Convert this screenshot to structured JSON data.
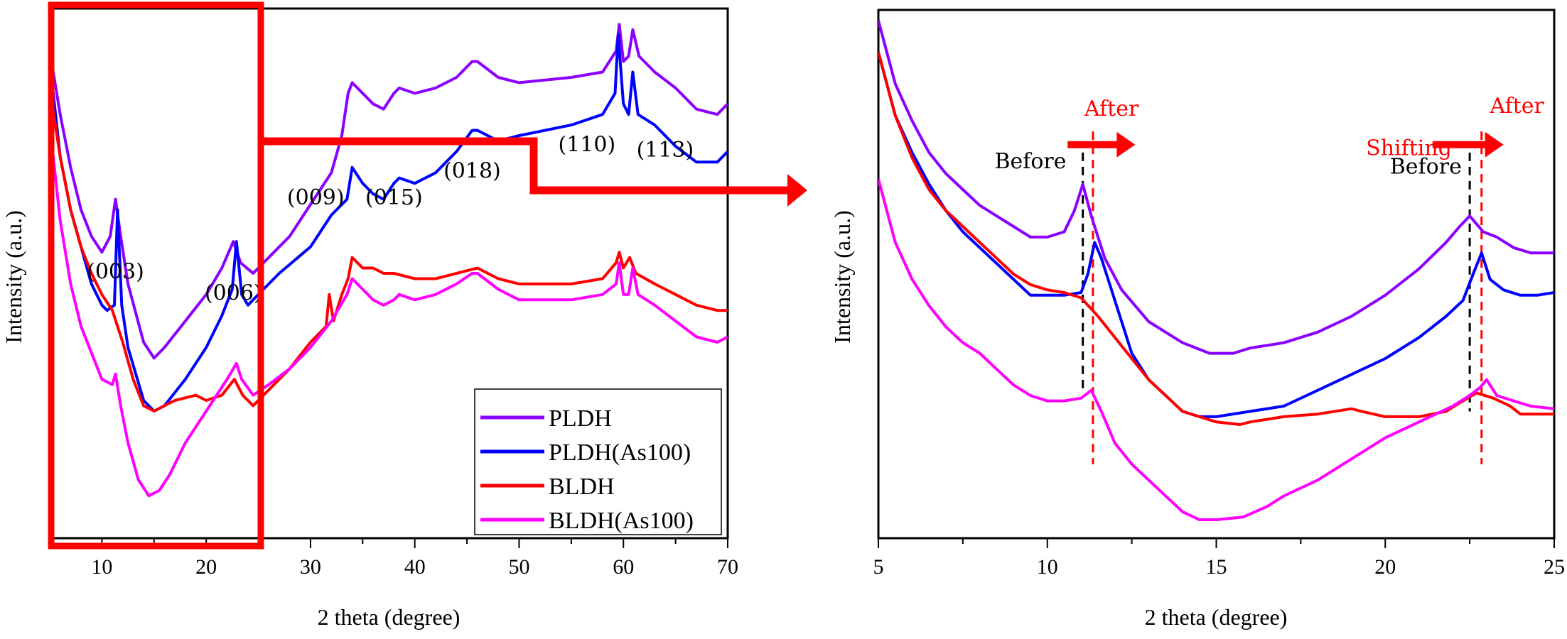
{
  "chart_data": [
    {
      "type": "line",
      "id": "left",
      "title": "",
      "xlabel": "2 theta (degree)",
      "ylabel": "Intensity (a.u.)",
      "xlim": [
        5,
        70
      ],
      "ylim": [
        0,
        100
      ],
      "xticks": [
        10,
        20,
        30,
        40,
        50,
        60,
        70
      ],
      "grid": false,
      "legend": {
        "placement": "bottom-right",
        "entries": [
          {
            "name": "PLDH",
            "color": "#8B00FF"
          },
          {
            "name": "PLDH(As100)",
            "color": "#0000FF"
          },
          {
            "name": "BLDH",
            "color": "#FF0000"
          },
          {
            "name": "BLDH(As100)",
            "color": "#FF00FF"
          }
        ]
      },
      "peak_labels": [
        {
          "text": "(003)",
          "x": 11.3,
          "y": 49
        },
        {
          "text": "(006)",
          "x": 22.6,
          "y": 45
        },
        {
          "text": "(009)",
          "x": 30.5,
          "y": 63
        },
        {
          "text": "(015)",
          "x": 38,
          "y": 63
        },
        {
          "text": "(018)",
          "x": 45.5,
          "y": 68
        },
        {
          "text": "(110)",
          "x": 56.5,
          "y": 73
        },
        {
          "text": "(113)",
          "x": 64,
          "y": 72
        }
      ],
      "series": [
        {
          "name": "PLDH",
          "color": "#8B00FF",
          "x": [
            5,
            6,
            7,
            8,
            9,
            10,
            10.8,
            11.3,
            11.8,
            12.5,
            14,
            15,
            16,
            18,
            20,
            21.5,
            22.6,
            23.3,
            24.5,
            26,
            28,
            30,
            32,
            33,
            33.6,
            34,
            35,
            36,
            37,
            38,
            38.5,
            40,
            42,
            44,
            45.5,
            46,
            48,
            50,
            55,
            58,
            59.3,
            59.6,
            60,
            60.5,
            60.9,
            61.5,
            63,
            65,
            67,
            69,
            70
          ],
          "y": [
            92,
            80,
            70,
            62,
            57,
            54,
            57,
            64,
            57,
            48,
            37,
            34,
            36,
            41,
            46,
            51,
            56,
            52,
            50,
            53,
            57,
            63,
            69,
            76,
            84,
            86,
            84,
            82,
            81,
            84,
            85,
            84,
            85,
            87,
            90,
            90,
            87,
            86,
            87,
            88,
            92,
            97,
            90,
            91,
            96,
            91,
            88,
            85,
            81,
            80,
            82
          ]
        },
        {
          "name": "PLDH(As100)",
          "color": "#0000FF",
          "x": [
            5,
            6,
            7,
            8,
            9,
            10,
            10.5,
            11.2,
            11.5,
            11.9,
            12.5,
            14,
            15,
            16,
            18,
            20,
            21.5,
            22.5,
            22.9,
            23.4,
            24,
            25,
            27,
            30,
            32,
            33.5,
            34,
            35,
            36,
            37,
            38,
            38.5,
            40,
            42,
            44,
            45.5,
            46,
            48,
            50,
            55,
            58,
            59.2,
            59.5,
            60,
            60.5,
            60.9,
            61.4,
            63,
            65,
            67,
            69,
            70
          ],
          "y": [
            90,
            72,
            62,
            55,
            48,
            44,
            43,
            44,
            62,
            44,
            36,
            26,
            24,
            25,
            30,
            36,
            42,
            47,
            56,
            46,
            44,
            46,
            50,
            55,
            61,
            64,
            70,
            67,
            65,
            64,
            67,
            68,
            67,
            69,
            73,
            77,
            77,
            75,
            76,
            78,
            80,
            84,
            95,
            82,
            80,
            88,
            80,
            78,
            74,
            71,
            71,
            73
          ]
        },
        {
          "name": "BLDH",
          "color": "#FF0000",
          "x": [
            5,
            6,
            7,
            8,
            9,
            10,
            11,
            12,
            13,
            14,
            15,
            16,
            17,
            19,
            20,
            21.5,
            22.7,
            23.5,
            24.5,
            26,
            28,
            30,
            31.5,
            31.8,
            32.2,
            33,
            33.6,
            34,
            35,
            36,
            37,
            38,
            40,
            42,
            44,
            46,
            48,
            50,
            55,
            58,
            59.3,
            59.6,
            60,
            60.6,
            61.2,
            63,
            65,
            67,
            69,
            70
          ],
          "y": [
            85,
            72,
            62,
            55,
            50,
            46,
            43,
            37,
            30,
            25,
            24,
            25,
            26,
            27,
            26,
            27,
            30,
            27,
            25,
            28,
            32,
            37,
            40,
            46,
            41,
            46,
            49,
            53,
            51,
            51,
            50,
            50,
            49,
            49,
            50,
            51,
            49,
            48,
            48,
            49,
            52,
            54,
            51,
            53,
            50,
            48,
            46,
            44,
            43,
            43
          ]
        },
        {
          "name": "BLDH(As100)",
          "color": "#FF00FF",
          "x": [
            5,
            6,
            7,
            8,
            9,
            10,
            11,
            11.3,
            11.8,
            12.5,
            13.5,
            14.5,
            15.5,
            16.5,
            18,
            20,
            22,
            22.9,
            23.4,
            24.5,
            26,
            28,
            30,
            32,
            33.5,
            34,
            35,
            36,
            37,
            38,
            38.5,
            40,
            42,
            44,
            45.5,
            46,
            48,
            50,
            55,
            58,
            59.3,
            59.6,
            60,
            60.5,
            60.9,
            61.4,
            63,
            65,
            67,
            69,
            70
          ],
          "y": [
            78,
            60,
            48,
            40,
            35,
            30,
            29,
            31,
            25,
            18,
            11,
            8,
            9,
            12,
            18,
            24,
            30,
            33,
            30,
            27,
            29,
            32,
            36,
            41,
            46,
            49,
            47,
            45,
            44,
            45,
            46,
            45,
            46,
            48,
            50,
            50,
            47,
            45,
            45,
            46,
            48,
            52,
            46,
            46,
            51,
            46,
            44,
            41,
            38,
            37,
            38
          ]
        }
      ]
    },
    {
      "type": "line",
      "id": "right",
      "title": "",
      "xlabel": "2 theta (degree)",
      "ylabel": "Intensity (a.u.)",
      "xlim": [
        5,
        25
      ],
      "ylim": [
        0,
        100
      ],
      "xticks": [
        5,
        10,
        15,
        20,
        25
      ],
      "grid": false,
      "annotations": [
        {
          "text": "After",
          "color": "#FF0000",
          "x": 11.9,
          "y": 80
        },
        {
          "text": "Before",
          "color": "#000000",
          "x": 9.5,
          "y": 70
        },
        {
          "text": "Shifting",
          "color": "#FF0000",
          "x": 20.7,
          "y": 72.5
        },
        {
          "text": "Before",
          "color": "#000000",
          "x": 21.2,
          "y": 69
        },
        {
          "text": "After",
          "color": "#FF0000",
          "x": 23.9,
          "y": 80.5
        }
      ],
      "reference_lines": [
        {
          "label": "Before",
          "x": 11.05,
          "color": "#000000",
          "y_range": [
            28,
            73
          ]
        },
        {
          "label": "After",
          "x": 11.35,
          "color": "#FF0000",
          "y_range": [
            14,
            77
          ]
        },
        {
          "label": "Before",
          "x": 22.5,
          "color": "#000000",
          "y_range": [
            24,
            73
          ]
        },
        {
          "label": "After",
          "x": 22.85,
          "color": "#FF0000",
          "y_range": [
            14,
            77
          ]
        }
      ],
      "arrows": [
        {
          "from_x": 10.6,
          "to_x": 12.6,
          "y": 74.5,
          "color": "#FF0000"
        },
        {
          "from_x": 21.4,
          "to_x": 23.5,
          "y": 74.5,
          "color": "#FF0000"
        }
      ],
      "series": [
        {
          "name": "PLDH",
          "color": "#8B00FF",
          "x": [
            5,
            5.5,
            6,
            6.5,
            7,
            7.5,
            8,
            8.5,
            9,
            9.5,
            10,
            10.5,
            10.8,
            11.05,
            11.3,
            11.7,
            12.2,
            13,
            14,
            14.8,
            15.5,
            16,
            17,
            18,
            19,
            20,
            21,
            21.8,
            22.2,
            22.5,
            22.9,
            23.3,
            23.8,
            24.3,
            25
          ],
          "y": [
            98,
            86,
            79,
            73,
            69,
            66,
            63,
            61,
            59,
            57,
            57,
            58,
            62,
            67,
            61,
            53,
            47,
            41,
            37,
            35,
            35,
            36,
            37,
            39,
            42,
            46,
            51,
            56,
            59,
            61,
            58,
            57,
            55,
            54,
            54
          ]
        },
        {
          "name": "PLDH(As100)",
          "color": "#0000FF",
          "x": [
            5,
            5.5,
            6,
            6.5,
            7,
            7.5,
            8,
            8.5,
            9,
            9.5,
            10,
            10.5,
            11,
            11.2,
            11.4,
            11.6,
            12,
            12.5,
            13,
            14,
            14.5,
            15,
            16,
            17,
            18,
            19,
            20,
            21,
            21.8,
            22.3,
            22.6,
            22.85,
            23.1,
            23.5,
            24,
            24.5,
            25
          ],
          "y": [
            92,
            80,
            73,
            67,
            62,
            58,
            55,
            52,
            49,
            46,
            46,
            46,
            46.5,
            50,
            56,
            53,
            45,
            35,
            30,
            24,
            23,
            23,
            24,
            25,
            28,
            31,
            34,
            38,
            42,
            45,
            50,
            54,
            49,
            47,
            46,
            46,
            46.5
          ]
        },
        {
          "name": "BLDH",
          "color": "#FF0000",
          "x": [
            5,
            5.5,
            6,
            6.5,
            7,
            7.5,
            8,
            8.5,
            9,
            9.5,
            10,
            10.5,
            11,
            11.5,
            12,
            12.5,
            13,
            14,
            14.5,
            15,
            15.7,
            16,
            17,
            18,
            19,
            19.3,
            20,
            21,
            21.8,
            22.3,
            22.7,
            23.2,
            23.7,
            24,
            25
          ],
          "y": [
            92,
            80,
            72,
            66,
            62,
            59,
            56,
            53,
            50,
            48,
            47,
            46.5,
            45.5,
            42,
            38,
            34,
            30,
            24,
            23,
            22,
            21.5,
            22,
            23,
            23.5,
            24.5,
            24,
            23,
            23,
            24,
            26,
            27.5,
            26.5,
            25,
            23.5,
            23.5
          ]
        },
        {
          "name": "BLDH(As100)",
          "color": "#FF00FF",
          "x": [
            5,
            5.5,
            6,
            6.5,
            7,
            7.5,
            8,
            8.5,
            9,
            9.5,
            10,
            10.5,
            11,
            11.3,
            11.6,
            12,
            12.5,
            13,
            14,
            14.5,
            15,
            15.8,
            16.5,
            17,
            18,
            19,
            20,
            21,
            22,
            22.5,
            22.8,
            23,
            23.3,
            23.8,
            24.3,
            25
          ],
          "y": [
            68,
            56,
            49,
            44,
            40,
            37,
            35,
            32,
            29,
            27,
            26,
            26,
            26.5,
            28,
            24,
            18,
            14,
            11,
            5,
            3.5,
            3.5,
            4,
            6,
            8,
            11,
            15,
            19,
            22,
            25,
            27,
            28.5,
            30,
            27,
            26,
            25,
            24.5
          ]
        }
      ]
    }
  ],
  "overlay": {
    "highlight_color": "#FF0000",
    "zoom_region_x": [
      5,
      25
    ]
  }
}
